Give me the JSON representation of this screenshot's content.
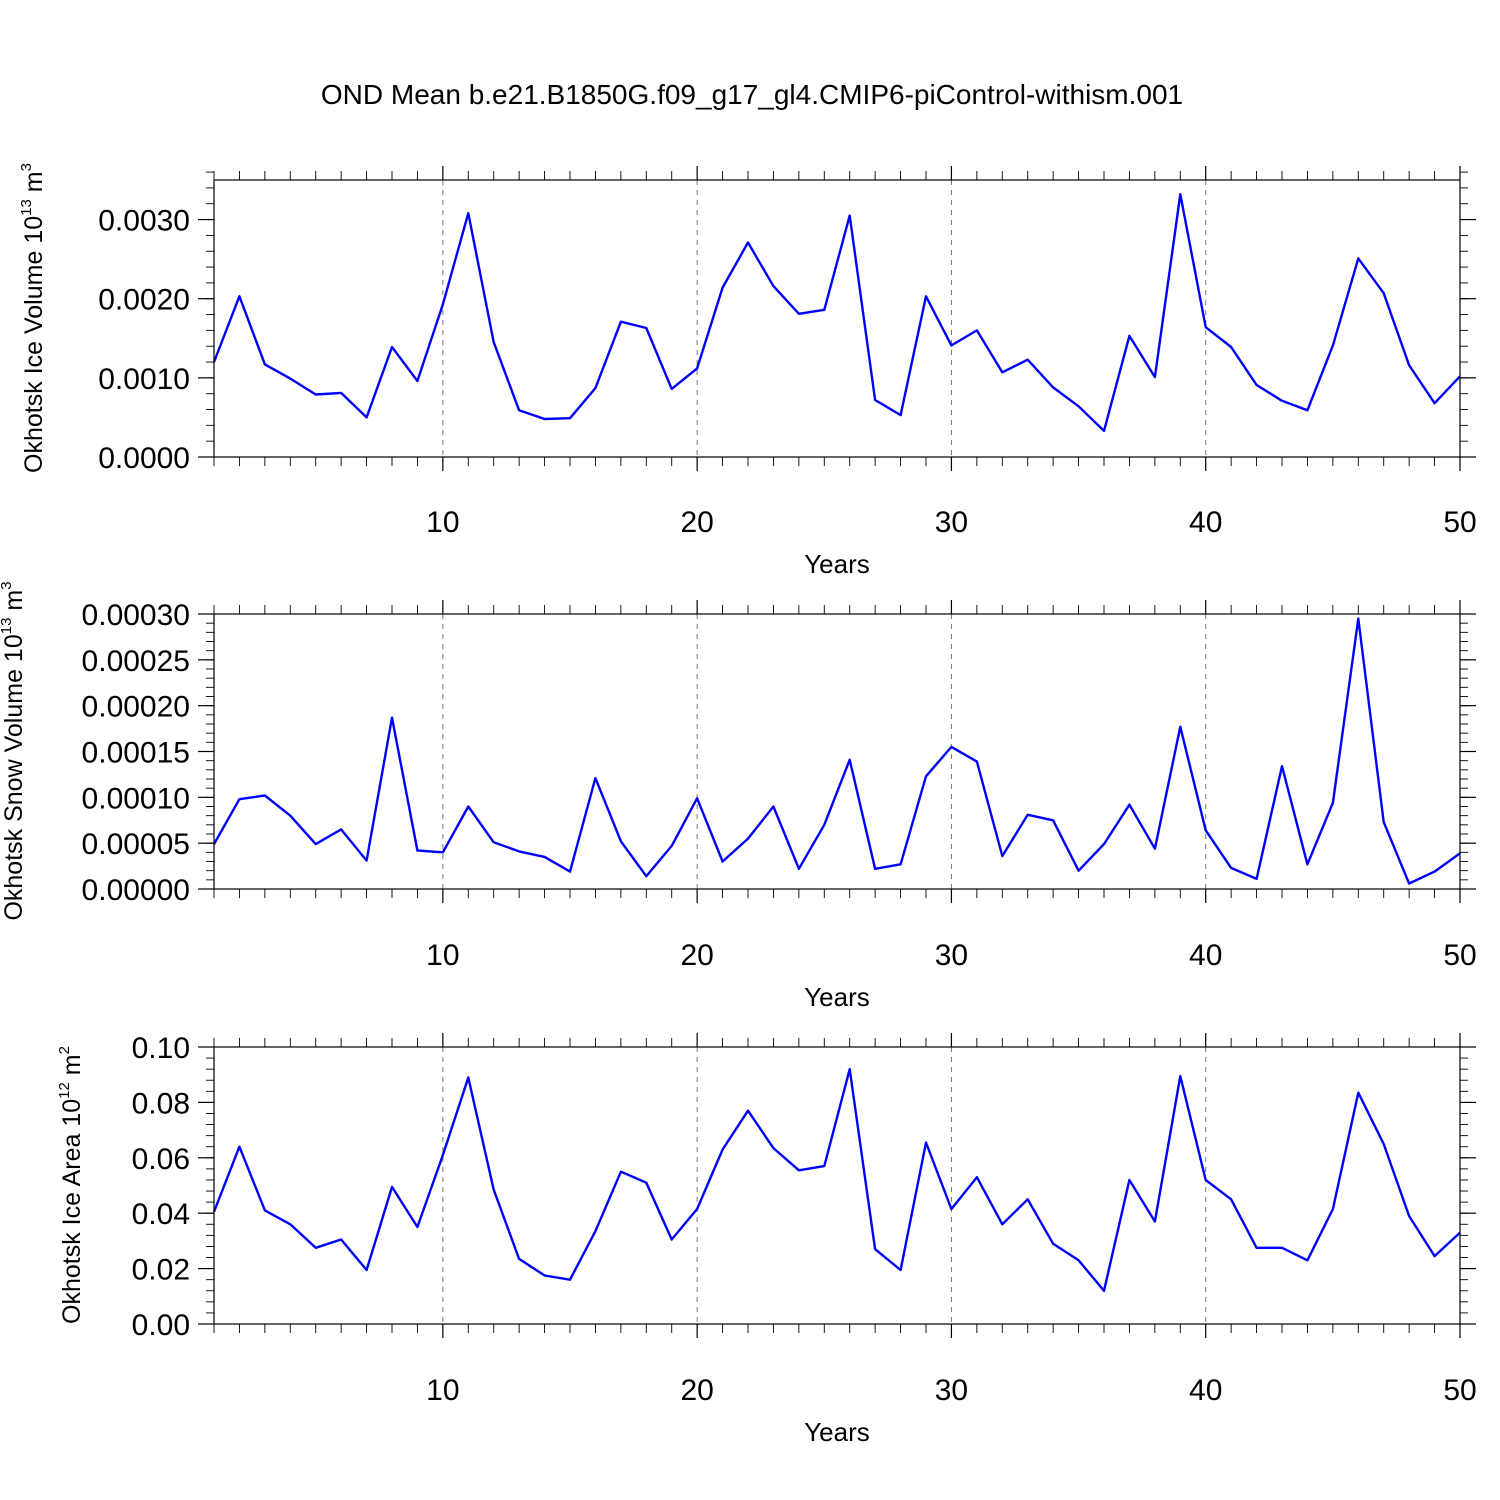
{
  "title": "OND Mean b.e21.B1850G.f09_g17_gl4.CMIP6-piControl-withism.001",
  "colors": {
    "series": "#0000ff",
    "axis": "#000000",
    "grid": "#777777"
  },
  "chart_data": [
    {
      "type": "line",
      "xlabel": "Years",
      "ylabel": {
        "main": "Okhotsk Ice Volume 10",
        "exp1": "13",
        "unit": " m",
        "exp2": "3"
      },
      "xlim": [
        1,
        50
      ],
      "ylim": [
        0,
        0.0035
      ],
      "xticks": [
        10,
        20,
        30,
        40,
        50
      ],
      "xtick_labels": [
        "10",
        "20",
        "30",
        "40",
        "50"
      ],
      "yticks": [
        0,
        0.001,
        0.002,
        0.003
      ],
      "ytick_labels": [
        "0.0000",
        "0.0010",
        "0.0020",
        "0.0030"
      ],
      "yminor_step": 0.0002,
      "grid": "x-dashed",
      "x": [
        1,
        2,
        3,
        4,
        5,
        6,
        7,
        8,
        9,
        10,
        11,
        12,
        13,
        14,
        15,
        16,
        17,
        18,
        19,
        20,
        21,
        22,
        23,
        24,
        25,
        26,
        27,
        28,
        29,
        30,
        31,
        32,
        33,
        34,
        35,
        36,
        37,
        38,
        39,
        40,
        41,
        42,
        43,
        44,
        45,
        46,
        47,
        48,
        49,
        50
      ],
      "values": [
        0.0012,
        0.00203,
        0.00117,
        0.00099,
        0.00079,
        0.00081,
        0.0005,
        0.00139,
        0.00096,
        0.00193,
        0.00308,
        0.00145,
        0.00059,
        0.00048,
        0.00049,
        0.00087,
        0.00171,
        0.00163,
        0.00086,
        0.00112,
        0.00214,
        0.00271,
        0.00216,
        0.00181,
        0.00186,
        0.00305,
        0.00072,
        0.00053,
        0.00203,
        0.00141,
        0.0016,
        0.00107,
        0.00123,
        0.00088,
        0.00064,
        0.00033,
        0.00153,
        0.00101,
        0.00332,
        0.00164,
        0.00139,
        0.00091,
        0.00071,
        0.00059,
        0.00141,
        0.00251,
        0.00207,
        0.00116,
        0.00068,
        0.00102
      ]
    },
    {
      "type": "line",
      "xlabel": "Years",
      "ylabel": {
        "main": "Okhotsk Snow Volume 10",
        "exp1": "13",
        "unit": " m",
        "exp2": "3"
      },
      "xlim": [
        1,
        50
      ],
      "ylim": [
        0,
        0.0003
      ],
      "xticks": [
        10,
        20,
        30,
        40,
        50
      ],
      "xtick_labels": [
        "10",
        "20",
        "30",
        "40",
        "50"
      ],
      "yticks": [
        0,
        5e-05,
        0.0001,
        0.00015,
        0.0002,
        0.00025,
        0.0003
      ],
      "ytick_labels": [
        "0.00000",
        "0.00005",
        "0.00010",
        "0.00015",
        "0.00020",
        "0.00025",
        "0.00030"
      ],
      "yminor_step": 1e-05,
      "grid": "x-dashed",
      "x": [
        1,
        2,
        3,
        4,
        5,
        6,
        7,
        8,
        9,
        10,
        11,
        12,
        13,
        14,
        15,
        16,
        17,
        18,
        19,
        20,
        21,
        22,
        23,
        24,
        25,
        26,
        27,
        28,
        29,
        30,
        31,
        32,
        33,
        34,
        35,
        36,
        37,
        38,
        39,
        40,
        41,
        42,
        43,
        44,
        45,
        46,
        47,
        48,
        49,
        50
      ],
      "values": [
        4.9e-05,
        9.8e-05,
        0.000102,
        8e-05,
        4.9e-05,
        6.5e-05,
        3.1e-05,
        0.000187,
        4.2e-05,
        4e-05,
        9e-05,
        5.1e-05,
        4.1e-05,
        3.5e-05,
        1.9e-05,
        0.000121,
        5.2e-05,
        1.4e-05,
        4.7e-05,
        9.9e-05,
        3e-05,
        5.5e-05,
        9e-05,
        2.2e-05,
        7e-05,
        0.000141,
        2.2e-05,
        2.7e-05,
        0.000123,
        0.000155,
        0.000139,
        3.6e-05,
        8.1e-05,
        7.5e-05,
        2e-05,
        4.9e-05,
        9.2e-05,
        4.4e-05,
        0.000177,
        6.4e-05,
        2.3e-05,
        1.1e-05,
        0.000134,
        2.7e-05,
        9.4e-05,
        0.000295,
        7.3e-05,
        6e-06,
        1.9e-05,
        3.9e-05
      ]
    },
    {
      "type": "line",
      "xlabel": "Years",
      "ylabel": {
        "main": "Okhotsk Ice Area 10",
        "exp1": "12",
        "unit": " m",
        "exp2": "2"
      },
      "xlim": [
        1,
        50
      ],
      "ylim": [
        0,
        0.1
      ],
      "xticks": [
        10,
        20,
        30,
        40,
        50
      ],
      "xtick_labels": [
        "10",
        "20",
        "30",
        "40",
        "50"
      ],
      "yticks": [
        0,
        0.02,
        0.04,
        0.06,
        0.08,
        0.1
      ],
      "ytick_labels": [
        "0.00",
        "0.02",
        "0.04",
        "0.06",
        "0.08",
        "0.10"
      ],
      "yminor_step": 0.004,
      "grid": "x-dashed",
      "x": [
        1,
        2,
        3,
        4,
        5,
        6,
        7,
        8,
        9,
        10,
        11,
        12,
        13,
        14,
        15,
        16,
        17,
        18,
        19,
        20,
        21,
        22,
        23,
        24,
        25,
        26,
        27,
        28,
        29,
        30,
        31,
        32,
        33,
        34,
        35,
        36,
        37,
        38,
        39,
        40,
        41,
        42,
        43,
        44,
        45,
        46,
        47,
        48,
        49,
        50
      ],
      "values": [
        0.0405,
        0.064,
        0.041,
        0.036,
        0.0275,
        0.0305,
        0.0195,
        0.0495,
        0.035,
        0.061,
        0.089,
        0.0485,
        0.0235,
        0.0175,
        0.016,
        0.0335,
        0.055,
        0.051,
        0.0305,
        0.0415,
        0.063,
        0.077,
        0.0635,
        0.0555,
        0.057,
        0.092,
        0.027,
        0.0195,
        0.0655,
        0.0415,
        0.053,
        0.036,
        0.045,
        0.029,
        0.023,
        0.012,
        0.052,
        0.037,
        0.0895,
        0.052,
        0.045,
        0.0275,
        0.0275,
        0.023,
        0.0415,
        0.0835,
        0.065,
        0.039,
        0.0245,
        0.033
      ]
    }
  ]
}
